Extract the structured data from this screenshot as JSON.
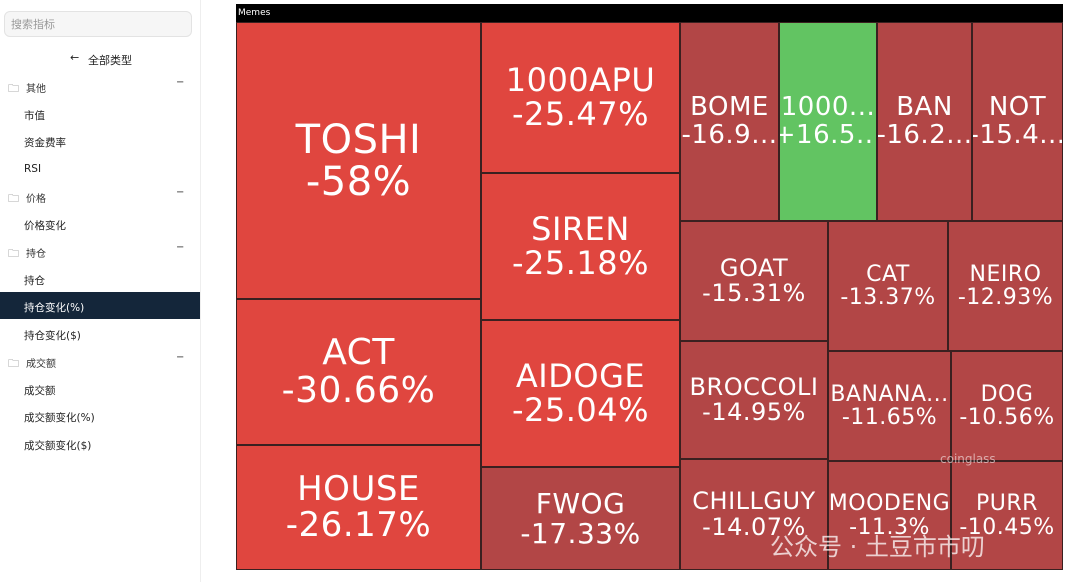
{
  "sidebar": {
    "search_placeholder": "搜索指标",
    "all_types": "全部类型",
    "groups": [
      {
        "title": "其他",
        "items": [
          "市值",
          "资金费率",
          "RSI"
        ]
      },
      {
        "title": "价格",
        "items": [
          "价格变化"
        ]
      },
      {
        "title": "持仓",
        "items": [
          "持仓",
          "持仓变化(%)",
          "持仓变化($)"
        ]
      },
      {
        "title": "成交额",
        "items": [
          "成交额",
          "成交额变化(%)",
          "成交额变化($)"
        ]
      }
    ],
    "selected_item": "持仓变化(%)"
  },
  "treemap": {
    "title": "Memes",
    "tiles": [
      {
        "name": "TOSHI",
        "change": "-58%",
        "color": "#e0463f"
      },
      {
        "name": "ACT",
        "change": "-30.66%",
        "color": "#e0463f"
      },
      {
        "name": "HOUSE",
        "change": "-26.17%",
        "color": "#e0463f"
      },
      {
        "name": "1000APU",
        "change": "-25.47%",
        "color": "#e0463f"
      },
      {
        "name": "SIREN",
        "change": "-25.18%",
        "color": "#e0463f"
      },
      {
        "name": "AIDOGE",
        "change": "-25.04%",
        "color": "#e0463f"
      },
      {
        "name": "FWOG",
        "change": "-17.33%",
        "color": "#b24646"
      },
      {
        "name": "BOME",
        "change": "-16.9...",
        "color": "#b24646"
      },
      {
        "name": "1000...",
        "change": "+16.5...",
        "color": "#62c462"
      },
      {
        "name": "BAN",
        "change": "-16.2...",
        "color": "#b24646"
      },
      {
        "name": "NOT",
        "change": "-15.4...",
        "color": "#b24646"
      },
      {
        "name": "GOAT",
        "change": "-15.31%",
        "color": "#b24646"
      },
      {
        "name": "BROCCOLI",
        "change": "-14.95%",
        "color": "#b24646"
      },
      {
        "name": "CHILLGUY",
        "change": "-14.07%",
        "color": "#b24646"
      },
      {
        "name": "CAT",
        "change": "-13.37%",
        "color": "#b24646"
      },
      {
        "name": "NEIRO",
        "change": "-12.93%",
        "color": "#b24646"
      },
      {
        "name": "BANANA...",
        "change": "-11.65%",
        "color": "#b24646"
      },
      {
        "name": "DOG",
        "change": "-10.56%",
        "color": "#b24646"
      },
      {
        "name": "MOODENG",
        "change": "-11.3%",
        "color": "#b24646"
      },
      {
        "name": "PURR",
        "change": "-10.45%",
        "color": "#b24646"
      }
    ]
  },
  "watermarks": {
    "brand": "coinglass",
    "account": "公众号 · 土豆市市叨"
  }
}
